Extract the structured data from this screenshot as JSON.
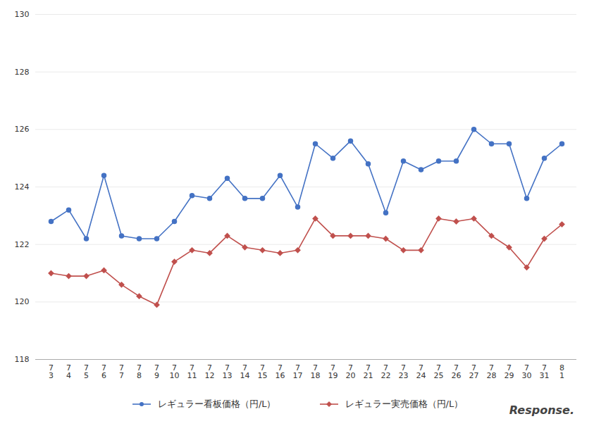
{
  "chart_data": {
    "type": "line",
    "categories": [
      "7\n3",
      "7\n4",
      "7\n5",
      "7\n6",
      "7\n7",
      "7\n8",
      "7\n9",
      "7\n10",
      "7\n11",
      "7\n12",
      "7\n13",
      "7\n14",
      "7\n15",
      "7\n16",
      "7\n17",
      "7\n18",
      "7\n19",
      "7\n20",
      "7\n21",
      "7\n22",
      "7\n23",
      "7\n24",
      "7\n25",
      "7\n26",
      "7\n27",
      "7\n28",
      "7\n29",
      "7\n30",
      "7\n31",
      "8\n1"
    ],
    "series": [
      {
        "name": "レギュラー看板価格（円/L）",
        "color": "#4472C4",
        "marker": "circle",
        "values": [
          122.8,
          123.2,
          122.2,
          124.4,
          122.3,
          122.2,
          122.2,
          122.8,
          123.7,
          123.6,
          124.3,
          123.6,
          123.6,
          124.4,
          123.3,
          125.5,
          125.0,
          125.6,
          124.8,
          123.1,
          124.9,
          124.6,
          124.9,
          124.9,
          126.0,
          125.5,
          125.5,
          123.6,
          125.0,
          125.5
        ]
      },
      {
        "name": "レギュラー実売価格（円/L）",
        "color": "#C0504D",
        "marker": "diamond",
        "values": [
          121.0,
          120.9,
          120.9,
          121.1,
          120.6,
          120.2,
          119.9,
          121.4,
          121.8,
          121.7,
          122.3,
          121.9,
          121.8,
          121.7,
          121.8,
          122.9,
          122.3,
          122.3,
          122.3,
          122.2,
          121.8,
          121.8,
          122.9,
          122.8,
          122.9,
          122.3,
          121.9,
          121.2,
          122.2,
          122.7
        ]
      }
    ],
    "ylim": [
      118,
      130
    ],
    "yticks": [
      118,
      120,
      122,
      124,
      126,
      128,
      130
    ],
    "grid": true,
    "legend": "bottom",
    "annotations": [
      "Response."
    ]
  }
}
